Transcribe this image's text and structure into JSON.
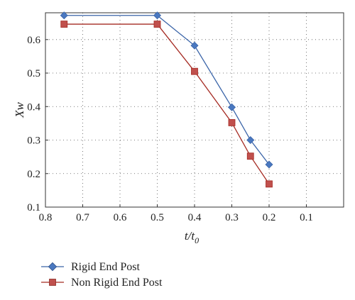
{
  "chart_data": {
    "type": "line",
    "xlabel": "t/t",
    "xlabel_sub": "0",
    "ylabel": "Xw",
    "x_reversed": true,
    "xlim": [
      0.8,
      0.0
    ],
    "ylim": [
      0.1,
      0.68
    ],
    "xticks": [
      0.8,
      0.7,
      0.6,
      0.5,
      0.4,
      0.3,
      0.2,
      0.1
    ],
    "yticks": [
      0.1,
      0.2,
      0.3,
      0.4,
      0.5,
      0.6
    ],
    "grid": true,
    "legend_position": "bottom-left",
    "series": [
      {
        "name": "Rigid End Post",
        "marker": "diamond",
        "color": "#3a64a8",
        "fill": "#4a78c0",
        "x": [
          0.75,
          0.5,
          0.4,
          0.3,
          0.25,
          0.2
        ],
        "y": [
          0.672,
          0.672,
          0.582,
          0.398,
          0.3,
          0.227
        ]
      },
      {
        "name": "Non Rigid End Post",
        "marker": "square",
        "color": "#a52a22",
        "fill": "#c0504d",
        "x": [
          0.75,
          0.5,
          0.4,
          0.3,
          0.25,
          0.2
        ],
        "y": [
          0.646,
          0.646,
          0.505,
          0.352,
          0.252,
          0.169
        ]
      }
    ]
  }
}
